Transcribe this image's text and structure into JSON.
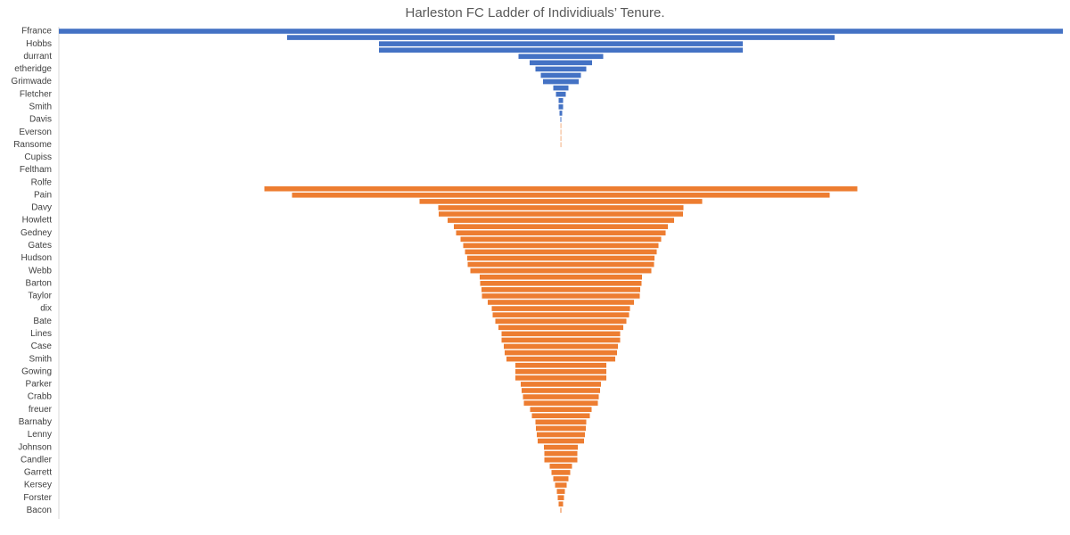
{
  "chart_data": {
    "type": "funnel",
    "title": "Harleston FC Ladder of Individiuals’ Tenure.",
    "categories": [
      "Ffrance",
      null,
      "Hobbs",
      null,
      "durrant",
      null,
      "etheridge",
      null,
      "Grimwade",
      null,
      "Fletcher",
      null,
      "Smith",
      null,
      "Davis",
      null,
      "Everson",
      null,
      "Ransome",
      null,
      "Cupiss",
      null,
      "Feltham",
      null,
      "Rolfe",
      null,
      "Pain",
      null,
      "Davy",
      null,
      "Howlett",
      null,
      "Gedney",
      null,
      "Gates",
      null,
      "Hudson",
      null,
      "Webb",
      null,
      "Barton",
      null,
      "Taylor",
      null,
      "dix",
      null,
      "Bate",
      null,
      "Lines",
      null,
      "Case",
      null,
      "Smith",
      null,
      "Gowing",
      null,
      "Parker",
      null,
      "Crabb",
      null,
      "freuer",
      null,
      "Barnaby",
      null,
      "Lenny",
      null,
      "Johnson",
      null,
      "Candler",
      null,
      "Garrett",
      null,
      "Kersey",
      null,
      "Forster",
      null,
      "Bacon"
    ],
    "series": [
      {
        "color": "#4472c4",
        "values": [
          1126,
          614,
          408,
          408,
          95,
          70,
          57,
          45,
          40,
          17,
          11,
          5,
          5,
          3,
          1,
          null,
          null,
          null,
          null,
          null,
          null,
          null,
          null,
          null,
          null,
          null,
          null,
          null,
          null,
          null,
          null,
          null,
          null,
          null,
          null,
          null,
          null,
          null,
          null,
          null,
          null,
          null,
          null,
          null,
          null,
          null,
          null,
          null,
          null,
          null,
          null,
          null,
          null,
          null,
          null,
          null,
          null,
          null,
          null,
          null,
          null,
          null,
          null,
          null,
          null,
          null,
          null,
          null,
          null,
          null,
          null,
          null,
          null,
          null,
          null,
          null,
          null
        ]
      },
      {
        "color": "#ed7d31",
        "values": [
          null,
          null,
          null,
          null,
          null,
          null,
          null,
          null,
          null,
          null,
          null,
          null,
          null,
          null,
          null,
          0.5,
          0.5,
          0.5,
          0.5,
          null,
          null,
          null,
          null,
          null,
          null,
          665,
          603,
          317,
          275,
          274,
          254,
          240,
          235,
          225,
          219,
          215,
          210,
          209,
          203,
          182,
          181,
          178,
          177,
          164,
          155,
          153,
          147,
          140,
          133,
          133,
          128,
          126,
          122,
          102,
          102,
          102,
          90,
          88,
          85,
          83,
          69,
          65,
          57,
          56,
          54,
          52,
          38,
          37,
          37,
          25,
          21,
          17,
          13,
          9,
          7,
          5,
          1
        ]
      }
    ],
    "xlim": [
      0,
      1126
    ]
  }
}
